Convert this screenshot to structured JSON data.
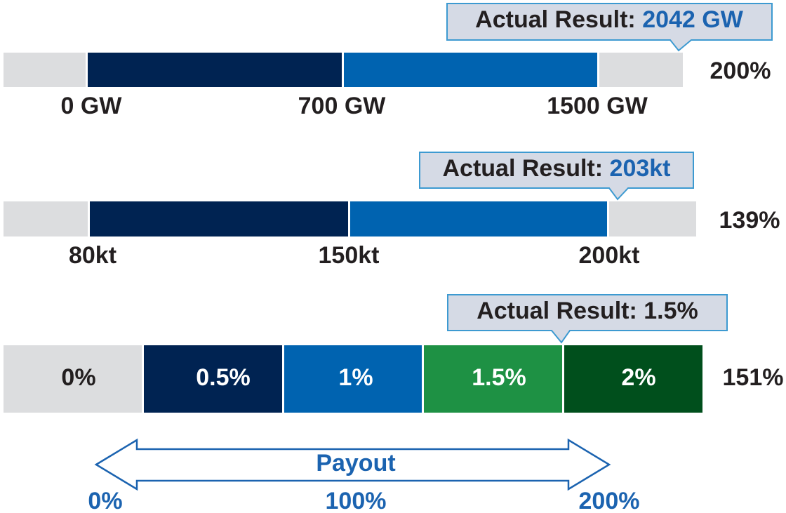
{
  "rows": [
    {
      "callout": {
        "label": "Actual Result:",
        "value": "2042 GW"
      },
      "ticks": [
        "0 GW",
        "700 GW",
        "1500 GW"
      ],
      "payout": "200%"
    },
    {
      "callout": {
        "label": "Actual Result:",
        "value": "203kt"
      },
      "ticks": [
        "80kt",
        "150kt",
        "200kt"
      ],
      "payout": "139%"
    },
    {
      "callout": {
        "label": "Actual Result:",
        "value": "1.5%"
      },
      "segments": [
        "0%",
        "0.5%",
        "1%",
        "1.5%",
        "2%"
      ],
      "payout": "151%"
    }
  ],
  "payout_scale": {
    "label": "Payout",
    "ticks": [
      "0%",
      "100%",
      "200%"
    ]
  }
}
